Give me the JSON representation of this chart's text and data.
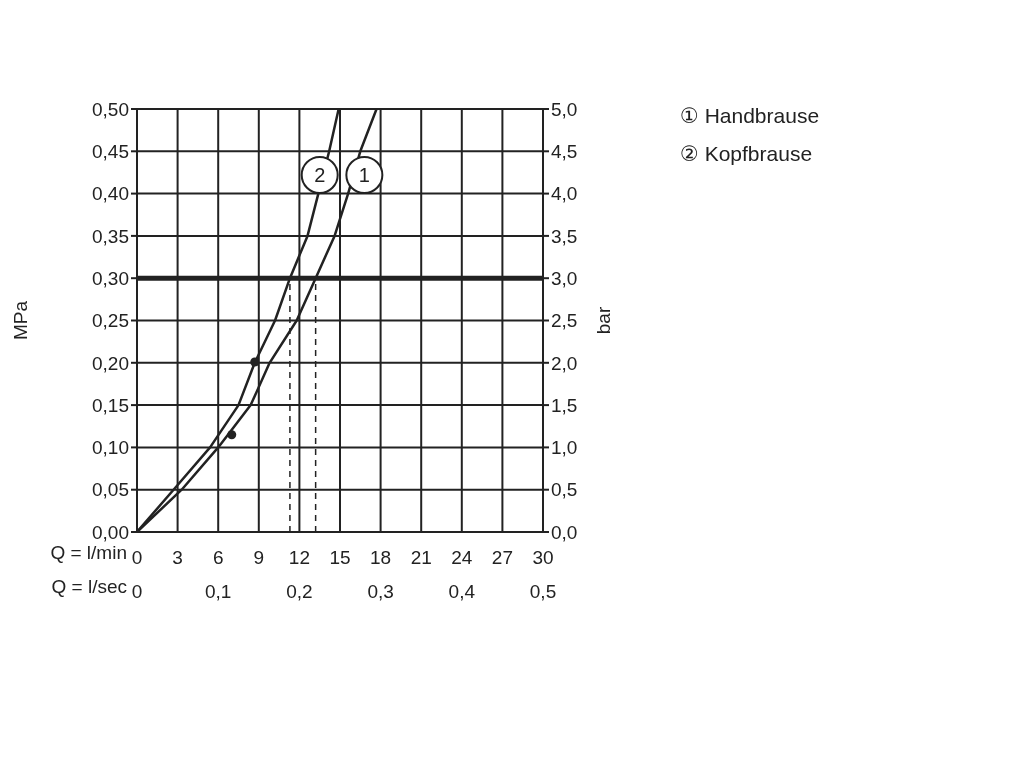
{
  "chart_data": {
    "type": "line",
    "xlabel": "Q = l/min",
    "x2label": "Q = l/sec",
    "ylabel": "MPa",
    "y2label": "bar",
    "xlim": [
      0,
      30
    ],
    "xticks": [
      0,
      3,
      6,
      9,
      12,
      15,
      18,
      21,
      24,
      27,
      30
    ],
    "x2lim": [
      0,
      0.5
    ],
    "x2ticks": [
      0,
      {
        "value": 0.1,
        "label": "0,1"
      },
      {
        "value": 0.2,
        "label": "0,2"
      },
      {
        "value": 0.3,
        "label": "0,3"
      },
      {
        "value": 0.4,
        "label": "0,4"
      },
      {
        "value": 0.5,
        "label": "0,5"
      }
    ],
    "ylim": [
      0,
      0.5
    ],
    "yticks": [
      {
        "value": 0,
        "label": "0,00"
      },
      {
        "value": 0.05,
        "label": "0,05"
      },
      {
        "value": 0.1,
        "label": "0,10"
      },
      {
        "value": 0.15,
        "label": "0,15"
      },
      {
        "value": 0.2,
        "label": "0,20"
      },
      {
        "value": 0.25,
        "label": "0,25"
      },
      {
        "value": 0.3,
        "label": "0,30"
      },
      {
        "value": 0.35,
        "label": "0,35"
      },
      {
        "value": 0.4,
        "label": "0,40"
      },
      {
        "value": 0.45,
        "label": "0,45"
      },
      {
        "value": 0.5,
        "label": "0,50"
      }
    ],
    "y2lim": [
      0,
      5
    ],
    "y2ticks": [
      {
        "value": 0,
        "label": "0,0"
      },
      {
        "value": 0.5,
        "label": "0,5"
      },
      {
        "value": 1,
        "label": "1,0"
      },
      {
        "value": 1.5,
        "label": "1,5"
      },
      {
        "value": 2,
        "label": "2,0"
      },
      {
        "value": 2.5,
        "label": "2,5"
      },
      {
        "value": 3,
        "label": "3,0"
      },
      {
        "value": 3.5,
        "label": "3,5"
      },
      {
        "value": 4,
        "label": "4,0"
      },
      {
        "value": 4.5,
        "label": "4,5"
      },
      {
        "value": 5,
        "label": "5,0"
      }
    ],
    "grid": true,
    "marker": "none",
    "line_style": "solid",
    "series": [
      {
        "color": "#222222",
        "x": [
          0,
          3.3,
          6.0,
          8.4,
          9.8,
          11.8,
          13.2,
          14.6,
          15.6,
          16.5,
          17.7
        ],
        "values": [
          0,
          0.05,
          0.1,
          0.15,
          0.2,
          0.25,
          0.3,
          0.35,
          0.4,
          0.45,
          0.5
        ]
      },
      {
        "color": "#222222",
        "x": [
          0,
          2.7,
          5.4,
          7.5,
          8.7,
          10.2,
          11.3,
          12.6,
          13.4,
          14.2,
          14.9
        ],
        "values": [
          0,
          0.05,
          0.1,
          0.15,
          0.2,
          0.25,
          0.3,
          0.35,
          0.4,
          0.45,
          0.5
        ]
      },
      {
        "type": "line",
        "line_style": "dashed",
        "color": "#222222",
        "x": [
          11.3,
          11.3
        ],
        "values": [
          0,
          0.3
        ]
      },
      {
        "type": "line",
        "line_style": "dashed",
        "color": "#222222",
        "x": [
          13.2,
          13.2
        ],
        "values": [
          0,
          0.3
        ]
      },
      {
        "type": "scatter",
        "marker": "circle",
        "color": "#222222",
        "x": [
          7.0,
          8.7
        ],
        "values": [
          0.115,
          0.201
        ]
      }
    ],
    "ref_lines": [
      {
        "axis": "y",
        "value": 0.3,
        "color": "#222222"
      }
    ],
    "annotations": [
      {
        "text": "1",
        "x": 16.8,
        "y": 0.422
      },
      {
        "text": "2",
        "x": 13.5,
        "y": 0.422
      },
      "① Handbrause",
      "② Kopfbrause"
    ]
  }
}
